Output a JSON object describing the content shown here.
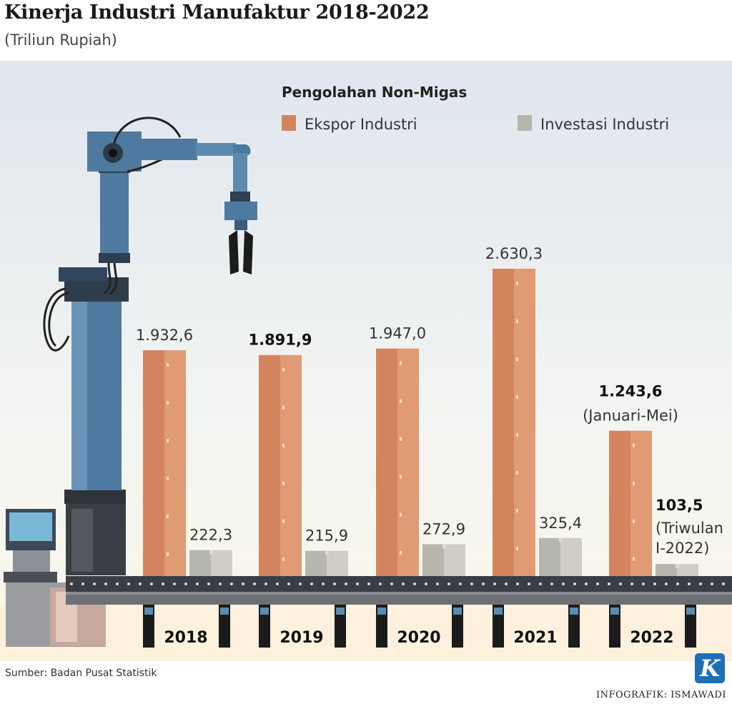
{
  "header": {
    "title": "Kinerja Industri Manufaktur 2018-2022",
    "subtitle": "(Triliun Rupiah)"
  },
  "footer": {
    "source": "Sumber: Badan Pusat Statistik",
    "credit": "INFOGRAFIK: ISMAWADI",
    "logo_letter": "K"
  },
  "chart_data": {
    "type": "bar",
    "legend_title": "Pengolahan Non-Migas",
    "legend_placement": "top-right",
    "categories": [
      "2018",
      "2019",
      "2020",
      "2021",
      "2022"
    ],
    "series": [
      {
        "name": "Ekspor Industri",
        "color": "#d4845d",
        "values": [
          1932.6,
          1891.9,
          1947.0,
          2630.3,
          1243.6
        ],
        "labels": [
          "1.932,6",
          "1.891,9",
          "1.947,0",
          "2.630,3",
          "1.243,6"
        ],
        "bold": [
          false,
          true,
          false,
          false,
          true
        ],
        "notes": [
          "",
          "",
          "",
          "",
          "(Januari-Mei)"
        ]
      },
      {
        "name": "Investasi Industri",
        "color": "#b7b6ac",
        "values": [
          222.3,
          215.9,
          272.9,
          325.4,
          103.5
        ],
        "labels": [
          "222,3",
          "215,9",
          "272,9",
          "325,4",
          "103,5"
        ],
        "bold": [
          false,
          false,
          false,
          false,
          true
        ],
        "notes": [
          "",
          "",
          "",
          "",
          "(Triwulan I-2022)"
        ]
      }
    ],
    "ylim": [
      0,
      2630.3
    ],
    "grid": false
  }
}
